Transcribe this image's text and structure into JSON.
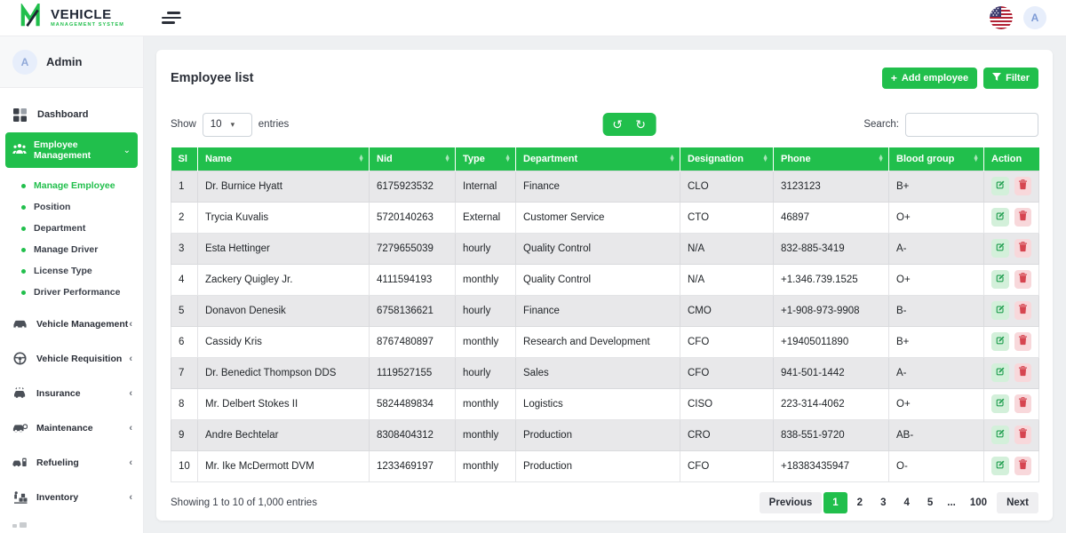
{
  "topbar": {
    "brand": {
      "title": "VEHICLE",
      "subtitle": "MANAGEMENT SYSTEM"
    },
    "user_initial": "A"
  },
  "sidebar": {
    "user": {
      "name": "Admin",
      "initial": "A"
    },
    "dashboard": {
      "label": "Dashboard",
      "icon": "dashboard-grid-icon"
    },
    "employee_management": {
      "label": "Employee Management",
      "icon": "people-icon",
      "chevron": "⌄"
    },
    "submenu": [
      {
        "label": "Manage Employee",
        "active": true
      },
      {
        "label": "Position",
        "active": false
      },
      {
        "label": "Department",
        "active": false
      },
      {
        "label": "Manage Driver",
        "active": false
      },
      {
        "label": "License Type",
        "active": false
      },
      {
        "label": "Driver Performance",
        "active": false
      }
    ],
    "groups": [
      {
        "label": "Vehicle Management",
        "icon": "car-icon",
        "chevron": "‹"
      },
      {
        "label": "Vehicle Requisition",
        "icon": "steering-wheel-icon",
        "chevron": "‹"
      },
      {
        "label": "Insurance",
        "icon": "insurance-car-icon",
        "chevron": "‹"
      },
      {
        "label": "Maintenance",
        "icon": "maintenance-car-icon",
        "chevron": "‹"
      },
      {
        "label": "Refueling",
        "icon": "fuel-pump-icon",
        "chevron": "‹"
      },
      {
        "label": "Inventory",
        "icon": "inventory-boxes-icon",
        "chevron": "‹"
      }
    ]
  },
  "main": {
    "title": "Employee list",
    "add_button": "Add employee",
    "add_icon": "+",
    "filter_button": "Filter",
    "filter_icon": "▼",
    "show_label": "Show",
    "page_size": "10",
    "entries_label": "entries",
    "refresh_icons": [
      "↺",
      "↻"
    ],
    "search_label": "Search:",
    "search_value": "",
    "table": {
      "headers": [
        "Sl",
        "Name",
        "Nid",
        "Type",
        "Department",
        "Designation",
        "Phone",
        "Blood group",
        "Action"
      ],
      "sortable": [
        false,
        true,
        true,
        true,
        true,
        true,
        true,
        true,
        false
      ],
      "rows": [
        [
          "1",
          "Dr. Burnice Hyatt",
          "6175923532",
          "Internal",
          "Finance",
          "CLO",
          "3123123",
          "B+"
        ],
        [
          "2",
          "Trycia Kuvalis",
          "5720140263",
          "External",
          "Customer Service",
          "CTO",
          "46897",
          "O+"
        ],
        [
          "3",
          "Esta Hettinger",
          "7279655039",
          "hourly",
          "Quality Control",
          "N/A",
          "832-885-3419",
          "A-"
        ],
        [
          "4",
          "Zackery Quigley Jr.",
          "4111594193",
          "monthly",
          "Quality Control",
          "N/A",
          "+1.346.739.1525",
          "O+"
        ],
        [
          "5",
          "Donavon Denesik",
          "6758136621",
          "hourly",
          "Finance",
          "CMO",
          "+1-908-973-9908",
          "B-"
        ],
        [
          "6",
          "Cassidy Kris",
          "8767480897",
          "monthly",
          "Research and Development",
          "CFO",
          "+19405011890",
          "B+"
        ],
        [
          "7",
          "Dr. Benedict Thompson DDS",
          "1119527155",
          "hourly",
          "Sales",
          "CFO",
          "941-501-1442",
          "A-"
        ],
        [
          "8",
          "Mr. Delbert Stokes II",
          "5824489834",
          "monthly",
          "Logistics",
          "CISO",
          "223-314-4062",
          "O+"
        ],
        [
          "9",
          "Andre Bechtelar",
          "8308404312",
          "monthly",
          "Production",
          "CRO",
          "838-551-9720",
          "AB-"
        ],
        [
          "10",
          "Mr. Ike McDermott DVM",
          "1233469197",
          "monthly",
          "Production",
          "CFO",
          "+18383435947",
          "O-"
        ]
      ]
    },
    "footer": {
      "info": "Showing 1 to 10 of 1,000 entries",
      "pagination": [
        {
          "label": "Previous",
          "kind": "nav"
        },
        {
          "label": "1",
          "kind": "page",
          "active": true
        },
        {
          "label": "2",
          "kind": "page"
        },
        {
          "label": "3",
          "kind": "page"
        },
        {
          "label": "4",
          "kind": "page"
        },
        {
          "label": "5",
          "kind": "page"
        },
        {
          "label": "...",
          "kind": "ellipsis"
        },
        {
          "label": "100",
          "kind": "page"
        },
        {
          "label": "Next",
          "kind": "nav"
        }
      ]
    }
  },
  "colors": {
    "accent_green": "#21bf4c",
    "stripe_gray": "#e8e8ea",
    "edit_bg": "#d3f0da",
    "edit_icon": "#1f9d4e",
    "delete_bg": "#f8d8db",
    "delete_icon": "#d64550"
  }
}
